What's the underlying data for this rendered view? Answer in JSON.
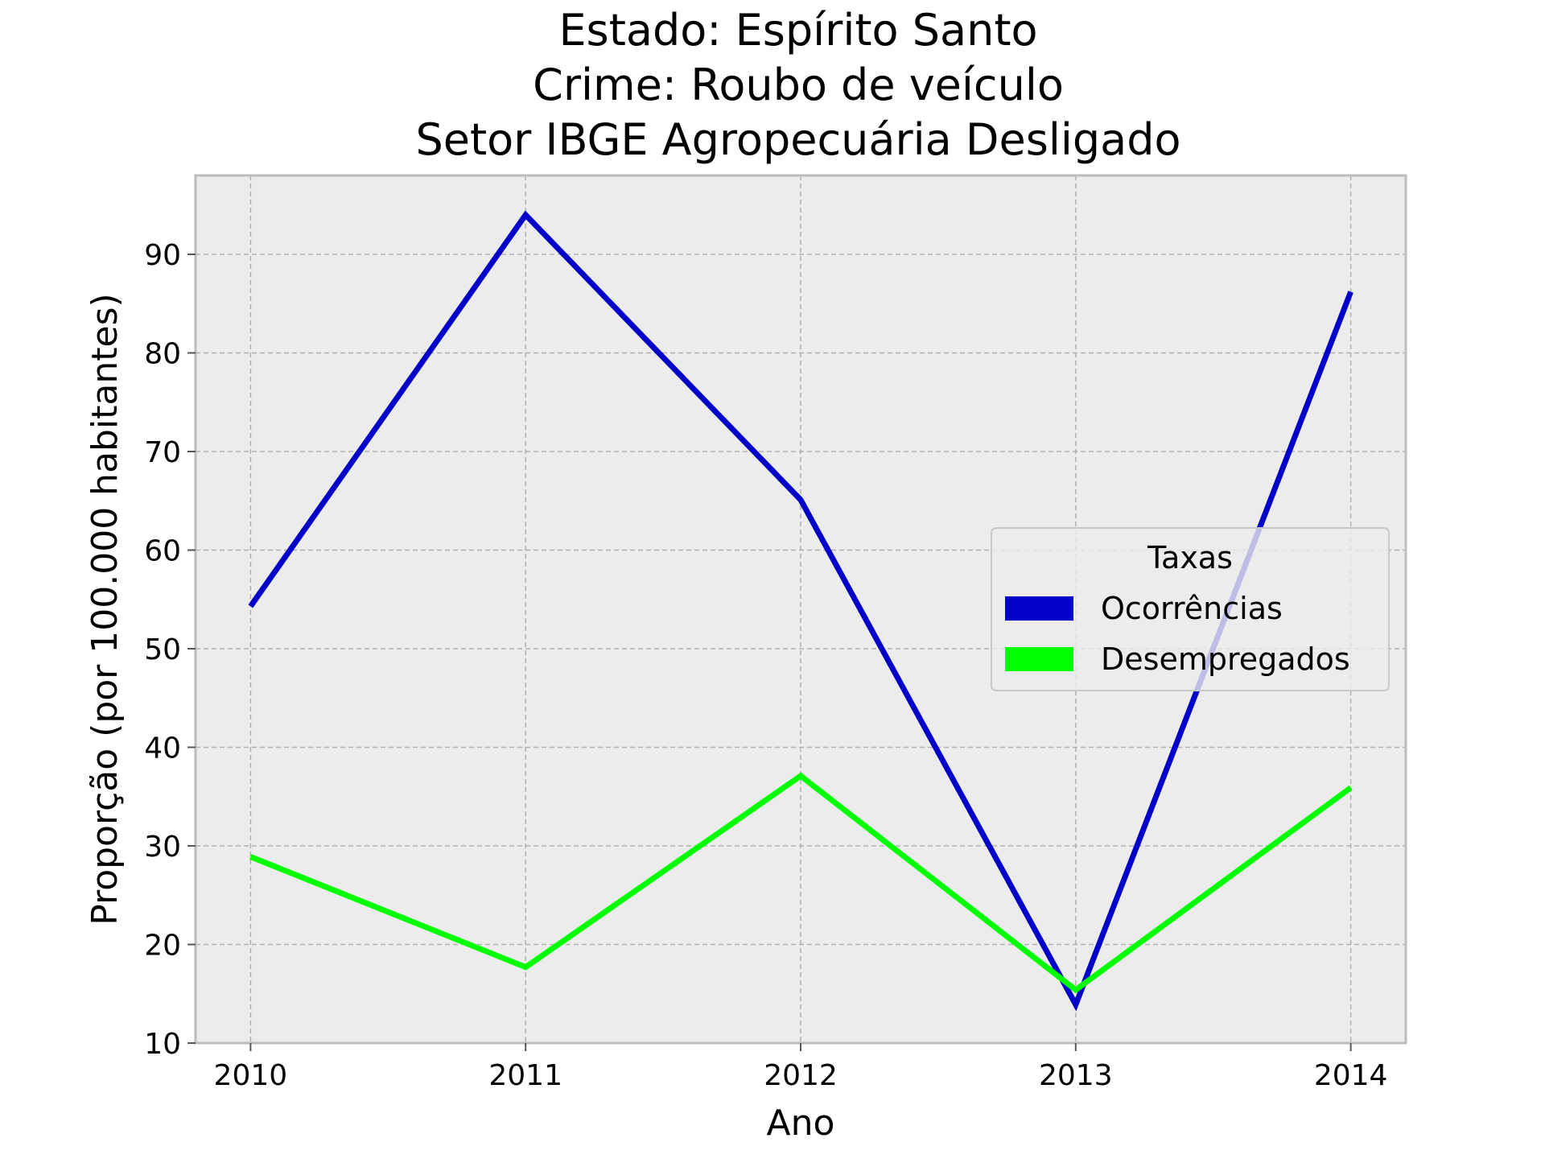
{
  "chart_data": {
    "type": "line",
    "title_lines": [
      "Estado: Espírito Santo",
      "Crime: Roubo de veículo",
      "Setor IBGE  Agropecuária   Desligado"
    ],
    "xlabel": "Ano",
    "ylabel": "Proporção (por 100.000 habitantes)",
    "x": [
      2010,
      2011,
      2012,
      2013,
      2014
    ],
    "x_tick_labels": [
      "2010",
      "2011",
      "2012",
      "2013",
      "2014"
    ],
    "y_ticks": [
      10,
      20,
      30,
      40,
      50,
      60,
      70,
      80,
      90
    ],
    "y_tick_labels": [
      "10",
      "20",
      "30",
      "40",
      "50",
      "60",
      "70",
      "80",
      "90"
    ],
    "xlim": [
      2009.8,
      2014.2
    ],
    "ylim": [
      10,
      98
    ],
    "grid": true,
    "legend": {
      "title": "Taxas",
      "placement": "center-right"
    },
    "series": [
      {
        "name": "Ocorrências",
        "color": "#0000c8",
        "values": [
          54.3,
          94.0,
          65.1,
          13.9,
          86.2
        ]
      },
      {
        "name": "Desempregados",
        "color": "#00ff00",
        "values": [
          28.9,
          17.7,
          37.1,
          15.4,
          35.9
        ]
      }
    ]
  },
  "colors": {
    "plot_background": "#ececec",
    "grid": "#b0b0b0",
    "frame": "#bcbcbc"
  }
}
